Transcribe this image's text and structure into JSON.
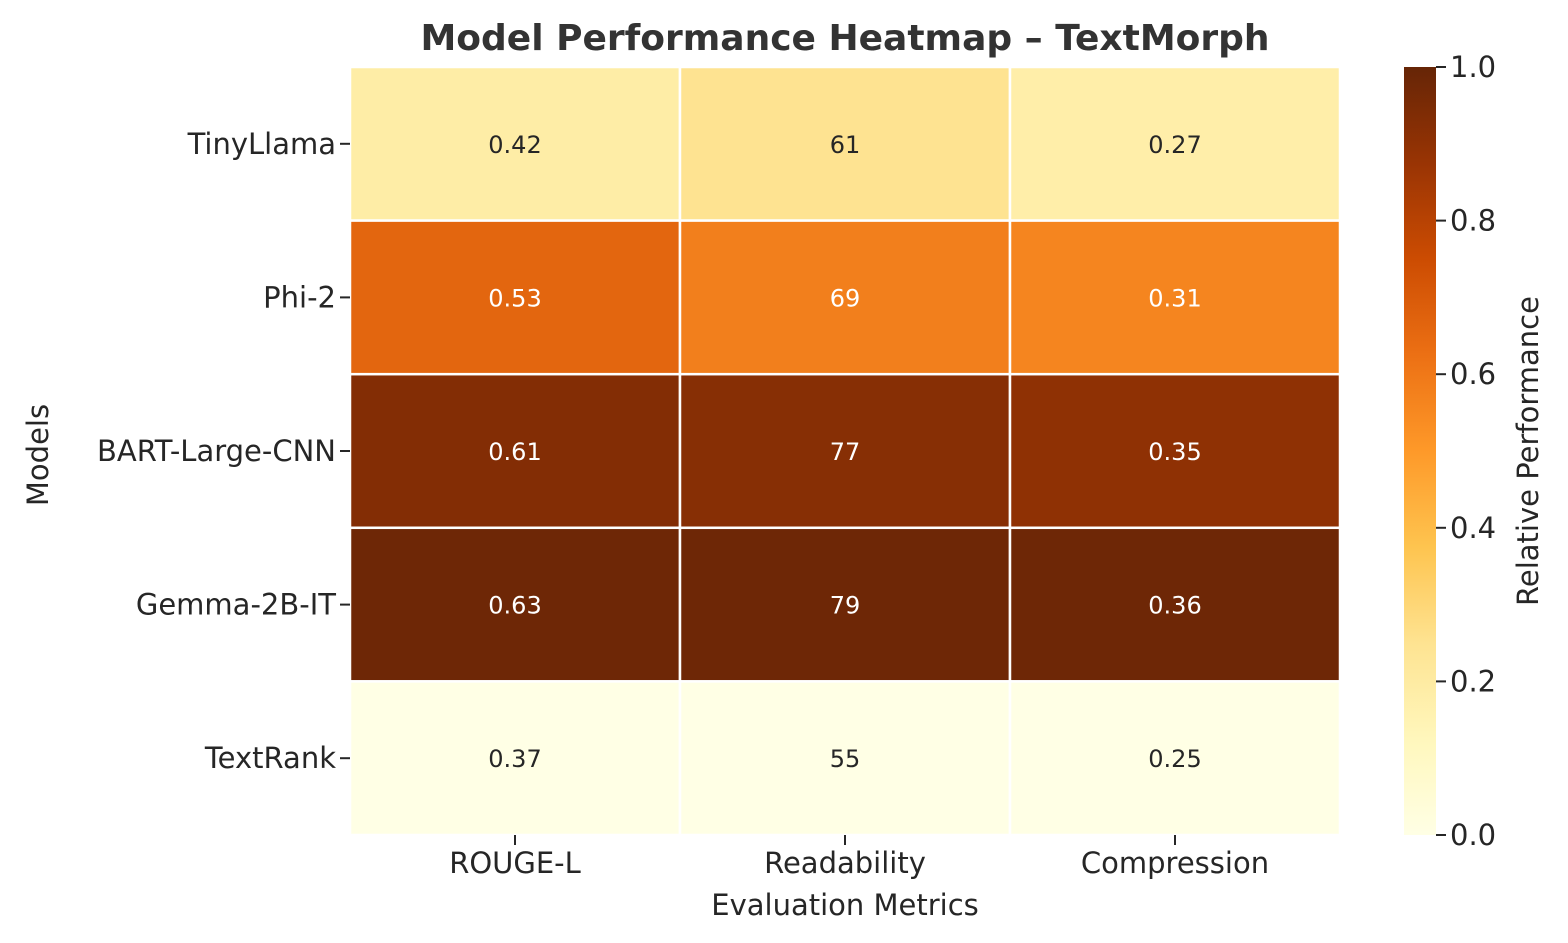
{
  "chart_data": {
    "type": "heatmap",
    "title": "Model Performance Heatmap – TextMorph",
    "xlabel": "Evaluation Metrics",
    "ylabel": "Models",
    "columns": [
      "ROUGE-L",
      "Readability",
      "Compression"
    ],
    "rows": [
      "TinyLlama",
      "Phi-2",
      "BART-Large-CNN",
      "Gemma-2B-IT",
      "TextRank"
    ],
    "cell_text": [
      [
        "0.42",
        "61",
        "0.27"
      ],
      [
        "0.53",
        "69",
        "0.31"
      ],
      [
        "0.61",
        "77",
        "0.35"
      ],
      [
        "0.63",
        "79",
        "0.36"
      ],
      [
        "0.37",
        "55",
        "0.25"
      ]
    ],
    "relative_values": [
      [
        0.19,
        0.25,
        0.18
      ],
      [
        0.66,
        0.58,
        0.56
      ],
      [
        0.93,
        0.92,
        0.9
      ],
      [
        0.98,
        0.98,
        0.98
      ],
      [
        0.0,
        0.0,
        0.0
      ]
    ],
    "colorbar": {
      "label": "Relative Performance",
      "range": [
        0.0,
        1.0
      ],
      "ticks": [
        "0.0",
        "0.2",
        "0.4",
        "0.6",
        "0.8",
        "1.0"
      ],
      "colormap": "YlOrBr"
    },
    "colors": {
      "text_dark": "#262626",
      "text_light": "#ffffff",
      "grid": "#ffffff"
    }
  }
}
